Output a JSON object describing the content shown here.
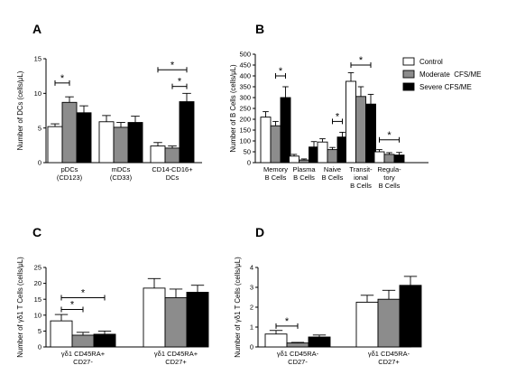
{
  "legend": [
    {
      "name": "Control",
      "color": "#ffffff"
    },
    {
      "name": "Moderate  CFS/ME",
      "color": "#8c8c8c"
    },
    {
      "name": "Severe CFS/ME",
      "color": "#000000"
    }
  ],
  "chart_data": [
    {
      "panel": "A",
      "type": "bar",
      "ylabel": "Number of DCs (cells/μL)",
      "ylim": [
        0,
        15
      ],
      "yticks": [
        0,
        5,
        10,
        15
      ],
      "categories": [
        [
          "pDCs",
          "(CD123)"
        ],
        [
          "mDCs",
          "(CD33)"
        ],
        [
          "CD14-CD16+",
          "DCs"
        ]
      ],
      "series": [
        {
          "name": "Control",
          "values": [
            5.2,
            5.9,
            2.4
          ],
          "errors": [
            0.4,
            0.9,
            0.5
          ]
        },
        {
          "name": "Moderate  CFS/ME",
          "values": [
            8.7,
            5.1,
            2.1
          ],
          "errors": [
            0.8,
            0.7,
            0.3
          ]
        },
        {
          "name": "Severe CFS/ME",
          "values": [
            7.2,
            5.8,
            8.8
          ],
          "errors": [
            1.0,
            0.9,
            1.2
          ]
        }
      ],
      "significance": [
        {
          "from": 0,
          "to": 1,
          "group": 0,
          "y": 11.5,
          "label": "*"
        },
        {
          "from": 0,
          "to": 2,
          "group": 2,
          "y": 13.4,
          "label": "*"
        },
        {
          "from": 1,
          "to": 2,
          "group": 2,
          "y": 11.0,
          "label": "*"
        }
      ]
    },
    {
      "panel": "B",
      "type": "bar",
      "ylabel": "Number of B Cells (cells/μL)",
      "ylim": [
        0,
        500
      ],
      "yticks": [
        0,
        50,
        100,
        150,
        200,
        250,
        300,
        350,
        400,
        450,
        500
      ],
      "categories": [
        [
          "Memory",
          "B Cells"
        ],
        [
          "Plasma",
          "B Cells"
        ],
        [
          "Naive",
          "B Cells"
        ],
        [
          "Transit-",
          "ional",
          "B Cells"
        ],
        [
          "Regula-",
          "tory",
          "B Cells"
        ]
      ],
      "series": [
        {
          "name": "Control",
          "values": [
            210,
            30,
            95,
            375,
            50
          ],
          "errors": [
            25,
            8,
            15,
            40,
            10
          ]
        },
        {
          "name": "Moderate  CFS/ME",
          "values": [
            170,
            12,
            60,
            305,
            38
          ],
          "errors": [
            20,
            5,
            10,
            45,
            8
          ]
        },
        {
          "name": "Severe CFS/ME",
          "values": [
            300,
            72,
            118,
            270,
            35
          ],
          "errors": [
            50,
            25,
            22,
            45,
            12
          ]
        }
      ],
      "significance": [
        {
          "from": 1,
          "to": 2,
          "group": 0,
          "y": 400,
          "label": "*"
        },
        {
          "from": 1,
          "to": 2,
          "group": 2,
          "y": 190,
          "label": "*"
        },
        {
          "from": 0,
          "to": 2,
          "group": 3,
          "y": 450,
          "label": "*"
        },
        {
          "from": 0,
          "to": 2,
          "group": 4,
          "y": 105,
          "label": "*"
        }
      ]
    },
    {
      "panel": "C",
      "type": "bar",
      "ylabel": "Number of γδ1 T Cells (cells/μL)",
      "ylim": [
        0,
        25
      ],
      "yticks": [
        0,
        5,
        10,
        15,
        20,
        25
      ],
      "categories": [
        [
          "γδ1 CD45RA+",
          "CD27-"
        ],
        [
          "γδ1 CD45RA+",
          "CD27+"
        ]
      ],
      "series": [
        {
          "name": "Control",
          "values": [
            8.2,
            18.5
          ],
          "errors": [
            2.0,
            3.0
          ]
        },
        {
          "name": "Moderate  CFS/ME",
          "values": [
            3.7,
            15.5
          ],
          "errors": [
            0.9,
            2.7
          ]
        },
        {
          "name": "Severe CFS/ME",
          "values": [
            4.0,
            17.2
          ],
          "errors": [
            1.0,
            2.2
          ]
        }
      ],
      "significance": [
        {
          "from": 0,
          "to": 1,
          "group": 0,
          "y": 11.8,
          "label": "*"
        },
        {
          "from": 0,
          "to": 2,
          "group": 0,
          "y": 15.5,
          "label": "*"
        }
      ]
    },
    {
      "panel": "D",
      "type": "bar",
      "ylabel": "Number of γδ1 T Cells (cells/μL)",
      "ylim": [
        0,
        4
      ],
      "yticks": [
        0,
        1,
        2,
        3,
        4
      ],
      "categories": [
        [
          "γδ1 CD45RA-",
          "CD27-"
        ],
        [
          "γδ1 CD45RA-",
          "CD27+"
        ]
      ],
      "series": [
        {
          "name": "Control",
          "values": [
            0.65,
            2.25
          ],
          "errors": [
            0.18,
            0.35
          ]
        },
        {
          "name": "Moderate  CFS/ME",
          "values": [
            0.2,
            2.4
          ],
          "errors": [
            0.03,
            0.45
          ]
        },
        {
          "name": "Severe CFS/ME",
          "values": [
            0.5,
            3.1
          ],
          "errors": [
            0.1,
            0.45
          ]
        }
      ],
      "significance": [
        {
          "from": 0,
          "to": 1,
          "group": 0,
          "y": 1.05,
          "label": "*"
        }
      ]
    }
  ]
}
